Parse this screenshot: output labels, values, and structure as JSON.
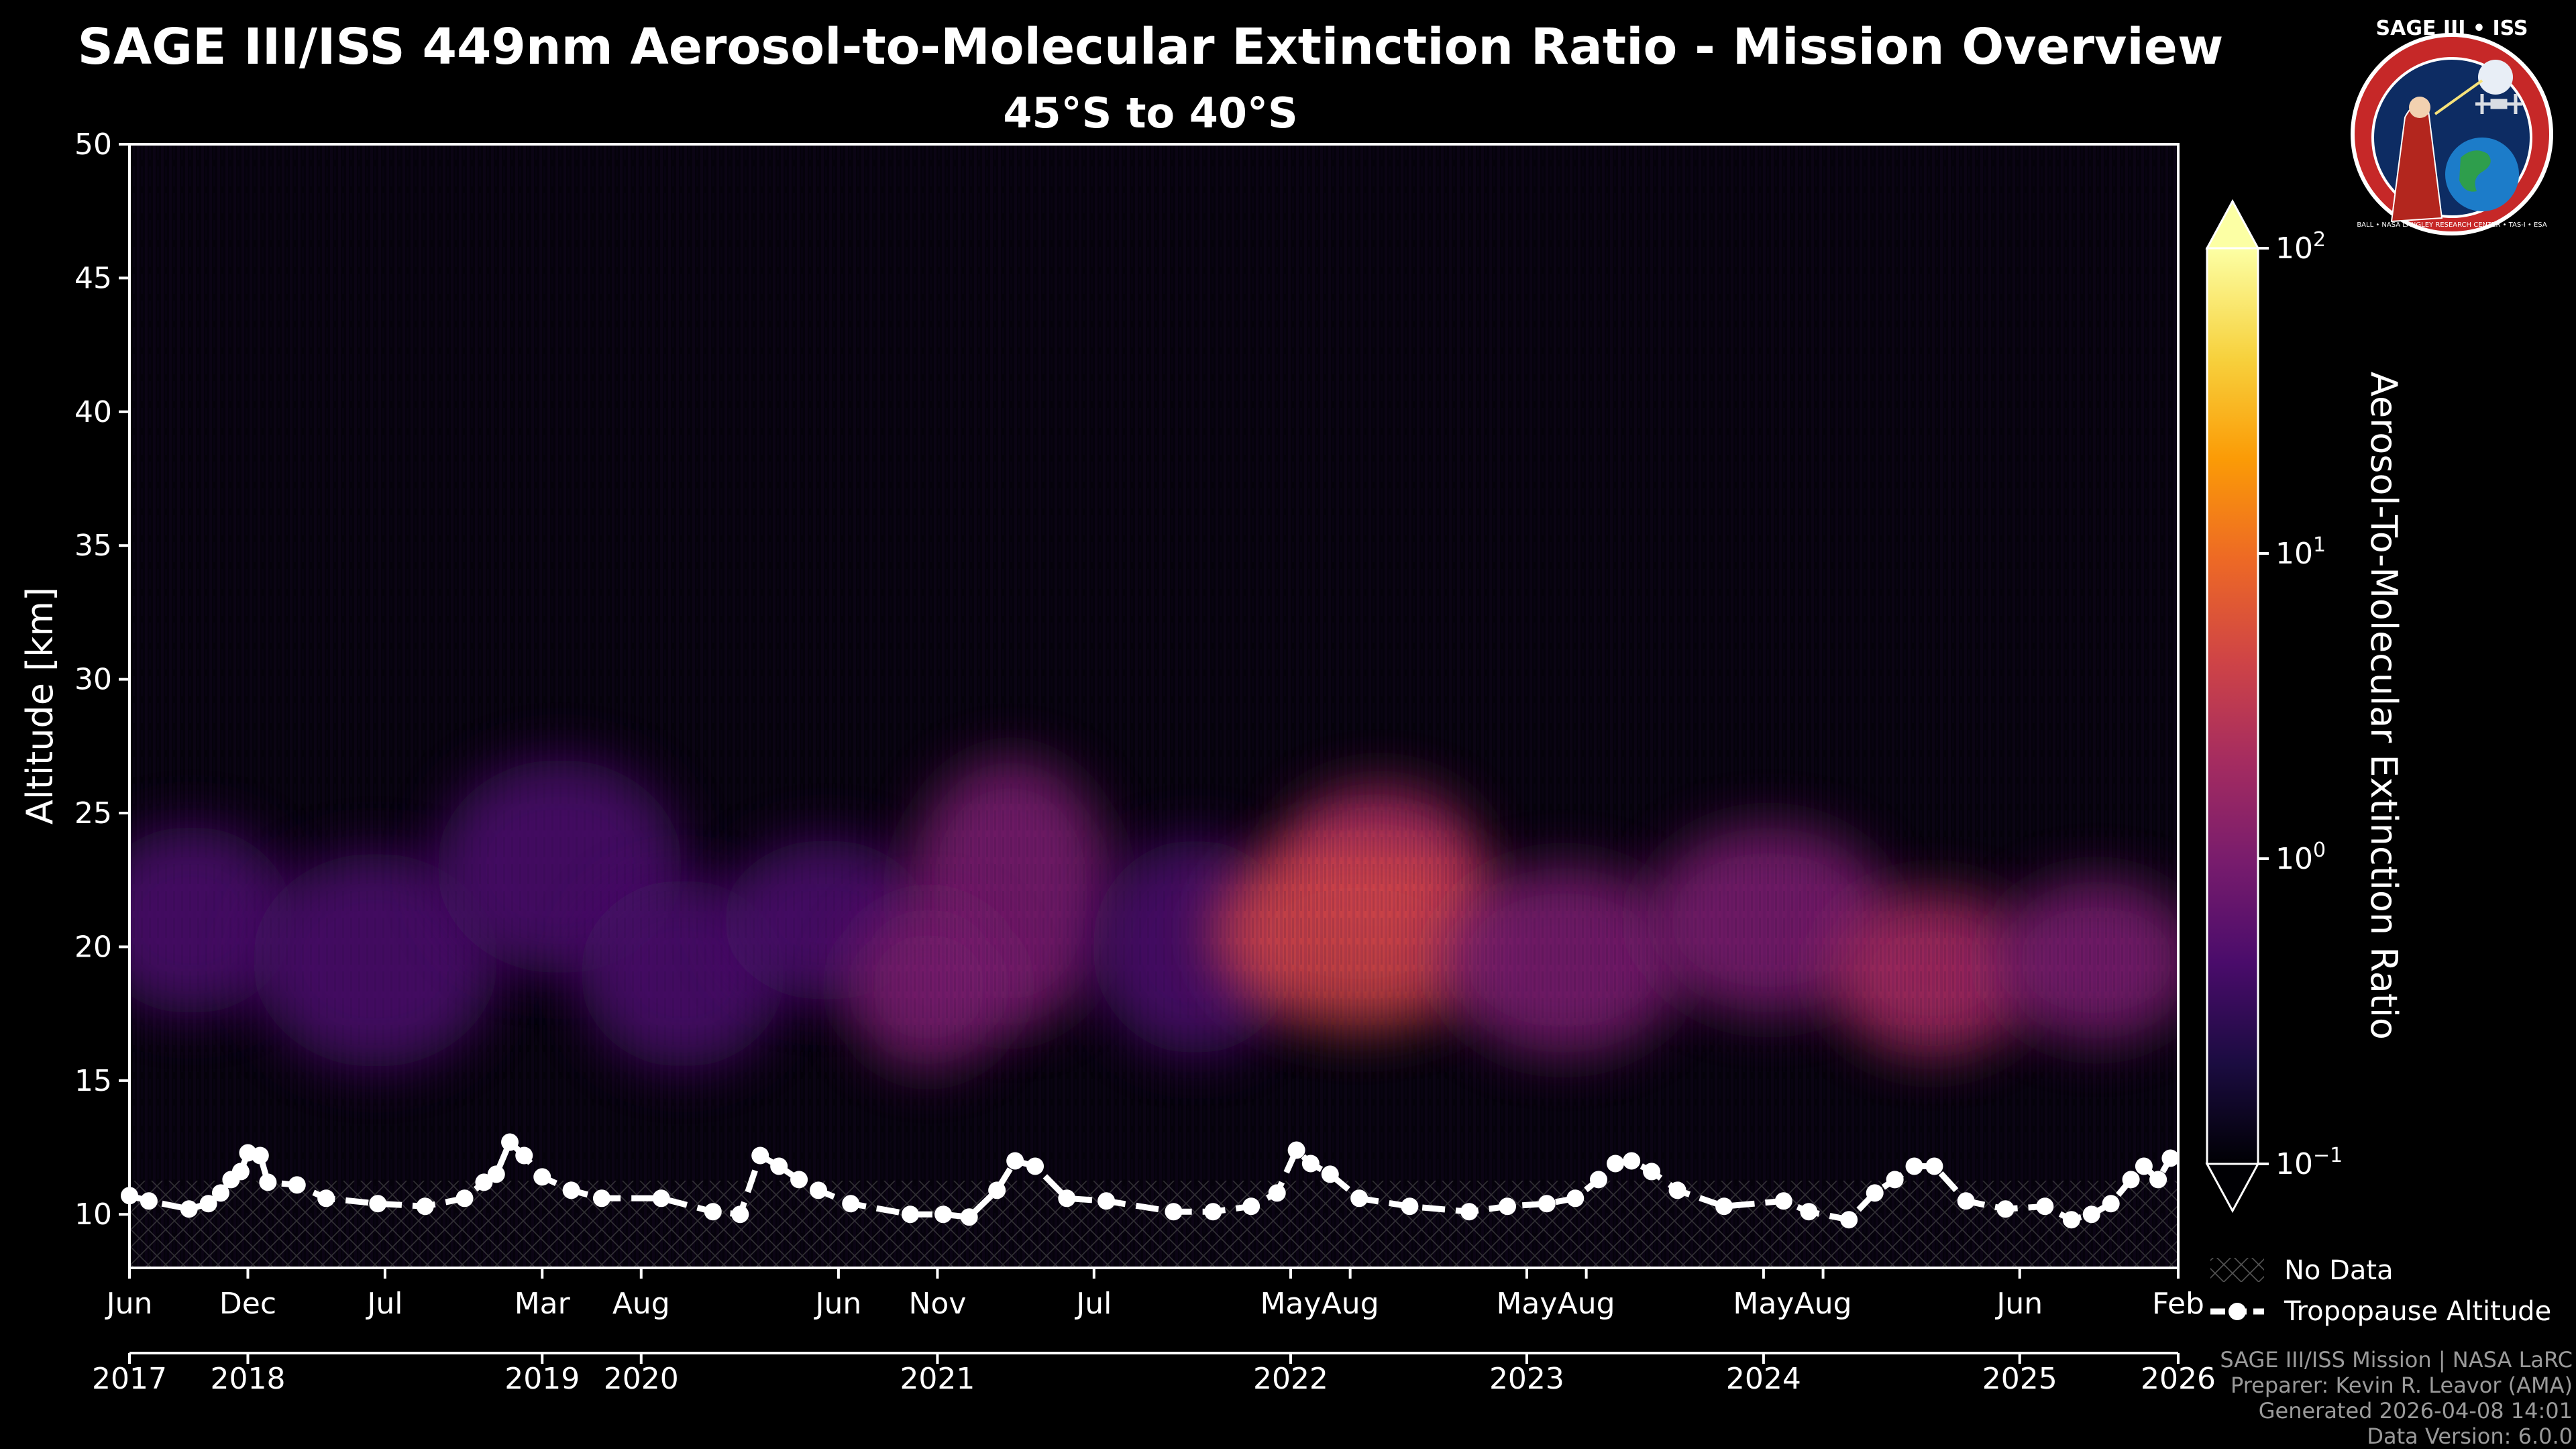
{
  "header": {
    "title": "SAGE III/ISS 449nm Aerosol-to-Molecular Extinction Ratio - Mission Overview",
    "subtitle": "45°S to 40°S"
  },
  "logo": {
    "text": "SAGE III • ISS",
    "ring_text": "BALL • NASA LANGLEY RESEARCH CENTER • TAS-I • ESA"
  },
  "legend": {
    "no_data": "No Data",
    "tropopause": "Tropopause Altitude"
  },
  "footer": {
    "mission": "SAGE III/ISS Mission | NASA LaRC",
    "preparer": "Preparer: Kevin R. Leavor (AMA)",
    "generated": "Generated 2026-04-08 14:01",
    "version": "Data Version: 6.0.0"
  },
  "colors": {
    "background": "#000000",
    "tropopause": "#ffffff",
    "colormap": [
      "#000004",
      "#1b0c41",
      "#4a0c6b",
      "#781c6d",
      "#a52c60",
      "#cf4446",
      "#ed6925",
      "#fb9b06",
      "#f7d13d",
      "#fcffa4"
    ]
  },
  "chart_data": {
    "type": "heatmap",
    "title": "SAGE III/ISS 449nm Aerosol-to-Molecular Extinction Ratio - Mission Overview",
    "subtitle": "45°S to 40°S",
    "xlabel": "",
    "ylabel": "Altitude [km]",
    "xlim": [
      "2017-06-01",
      "2026-02-01"
    ],
    "ylim": [
      8,
      50
    ],
    "yticks": [
      10,
      15,
      20,
      25,
      30,
      35,
      40,
      45,
      50
    ],
    "xticks_month": [
      {
        "date": "2017-06-01",
        "label": "Jun"
      },
      {
        "date": "2017-12-01",
        "label": "Dec"
      },
      {
        "date": "2018-07-01",
        "label": "Jul"
      },
      {
        "date": "2019-03-01",
        "label": "Mar"
      },
      {
        "date": "2019-08-01",
        "label": "Aug"
      },
      {
        "date": "2020-06-01",
        "label": "Jun"
      },
      {
        "date": "2020-11-01",
        "label": "Nov"
      },
      {
        "date": "2021-07-01",
        "label": "Jul"
      },
      {
        "date": "2022-05-01",
        "label": "May"
      },
      {
        "date": "2022-08-01",
        "label": "Aug"
      },
      {
        "date": "2023-05-01",
        "label": "May"
      },
      {
        "date": "2023-08-01",
        "label": "Aug"
      },
      {
        "date": "2024-05-01",
        "label": "May"
      },
      {
        "date": "2024-08-01",
        "label": "Aug"
      },
      {
        "date": "2025-06-01",
        "label": "Jun"
      },
      {
        "date": "2026-02-01",
        "label": "Feb"
      }
    ],
    "xticks_year": [
      {
        "date": "2017-06-01",
        "label": "2017"
      },
      {
        "date": "2017-12-01",
        "label": "2018"
      },
      {
        "date": "2019-03-01",
        "label": "2019"
      },
      {
        "date": "2019-08-01",
        "label": "2020"
      },
      {
        "date": "2020-11-01",
        "label": "2021"
      },
      {
        "date": "2022-05-01",
        "label": "2022"
      },
      {
        "date": "2023-05-01",
        "label": "2023"
      },
      {
        "date": "2024-05-01",
        "label": "2024"
      },
      {
        "date": "2025-06-01",
        "label": "2025"
      },
      {
        "date": "2026-02-01",
        "label": "2026"
      }
    ],
    "colorbar": {
      "label": "Aerosol-To-Molecular Extinction Ratio",
      "scale": "log",
      "range": [
        0.1,
        100
      ],
      "ticks": [
        {
          "value": 0.1,
          "base": "10",
          "exp": "−1"
        },
        {
          "value": 1,
          "base": "10",
          "exp": "0"
        },
        {
          "value": 10,
          "base": "10",
          "exp": "1"
        },
        {
          "value": 100,
          "base": "10",
          "exp": "2"
        }
      ],
      "extend": "both"
    },
    "aerosol_layers": [
      {
        "x_frac": 0.03,
        "alt_km": 21,
        "width": 0.05,
        "thick_km": 3.5,
        "ratio": 0.5
      },
      {
        "x_frac": 0.12,
        "alt_km": 19.5,
        "width": 0.06,
        "thick_km": 4,
        "ratio": 0.35
      },
      {
        "x_frac": 0.21,
        "alt_km": 23,
        "width": 0.06,
        "thick_km": 4,
        "ratio": 0.45
      },
      {
        "x_frac": 0.27,
        "alt_km": 19,
        "width": 0.05,
        "thick_km": 3.5,
        "ratio": 0.6
      },
      {
        "x_frac": 0.34,
        "alt_km": 21,
        "width": 0.05,
        "thick_km": 3,
        "ratio": 0.5
      },
      {
        "x_frac": 0.43,
        "alt_km": 22,
        "width": 0.05,
        "thick_km": 5,
        "ratio": 0.7
      },
      {
        "x_frac": 0.39,
        "alt_km": 18.5,
        "width": 0.04,
        "thick_km": 3,
        "ratio": 0.8
      },
      {
        "x_frac": 0.52,
        "alt_km": 20,
        "width": 0.05,
        "thick_km": 4,
        "ratio": 0.55
      },
      {
        "x_frac": 0.61,
        "alt_km": 23,
        "width": 0.05,
        "thick_km": 3,
        "ratio": 1.8
      },
      {
        "x_frac": 0.6,
        "alt_km": 20.5,
        "width": 0.07,
        "thick_km": 3.5,
        "ratio": 3.2
      },
      {
        "x_frac": 0.7,
        "alt_km": 19.5,
        "width": 0.06,
        "thick_km": 3.5,
        "ratio": 1.4
      },
      {
        "x_frac": 0.8,
        "alt_km": 21,
        "width": 0.06,
        "thick_km": 3.5,
        "ratio": 0.7
      },
      {
        "x_frac": 0.88,
        "alt_km": 19,
        "width": 0.05,
        "thick_km": 3,
        "ratio": 1.5
      },
      {
        "x_frac": 0.96,
        "alt_km": 19.5,
        "width": 0.05,
        "thick_km": 3,
        "ratio": 0.9
      }
    ],
    "tropopause": [
      {
        "x": "2017-06-01",
        "alt_km": 10.7
      },
      {
        "x": "2017-07-01",
        "alt_km": 10.5
      },
      {
        "x": "2017-09-01",
        "alt_km": 10.2
      },
      {
        "x": "2017-10-01",
        "alt_km": 10.4
      },
      {
        "x": "2017-10-20",
        "alt_km": 10.8
      },
      {
        "x": "2017-11-05",
        "alt_km": 11.3
      },
      {
        "x": "2017-11-20",
        "alt_km": 11.6
      },
      {
        "x": "2017-12-01",
        "alt_km": 12.3
      },
      {
        "x": "2017-12-20",
        "alt_km": 12.2
      },
      {
        "x": "2018-01-01",
        "alt_km": 11.2
      },
      {
        "x": "2018-02-15",
        "alt_km": 11.1
      },
      {
        "x": "2018-04-01",
        "alt_km": 10.6
      },
      {
        "x": "2018-06-20",
        "alt_km": 10.4
      },
      {
        "x": "2018-09-01",
        "alt_km": 10.3
      },
      {
        "x": "2018-11-01",
        "alt_km": 10.6
      },
      {
        "x": "2018-12-01",
        "alt_km": 11.2
      },
      {
        "x": "2018-12-20",
        "alt_km": 11.5
      },
      {
        "x": "2019-01-10",
        "alt_km": 12.7
      },
      {
        "x": "2019-02-01",
        "alt_km": 12.2
      },
      {
        "x": "2019-03-01",
        "alt_km": 11.4
      },
      {
        "x": "2019-04-15",
        "alt_km": 10.9
      },
      {
        "x": "2019-06-01",
        "alt_km": 10.6
      },
      {
        "x": "2019-09-01",
        "alt_km": 10.6
      },
      {
        "x": "2019-11-20",
        "alt_km": 10.1
      },
      {
        "x": "2020-01-01",
        "alt_km": 10.0
      },
      {
        "x": "2020-02-01",
        "alt_km": 12.2
      },
      {
        "x": "2020-03-01",
        "alt_km": 11.8
      },
      {
        "x": "2020-04-01",
        "alt_km": 11.3
      },
      {
        "x": "2020-05-01",
        "alt_km": 10.9
      },
      {
        "x": "2020-06-20",
        "alt_km": 10.4
      },
      {
        "x": "2020-09-20",
        "alt_km": 10.0
      },
      {
        "x": "2020-11-10",
        "alt_km": 10.0
      },
      {
        "x": "2020-12-20",
        "alt_km": 9.9
      },
      {
        "x": "2021-02-01",
        "alt_km": 10.9
      },
      {
        "x": "2021-03-01",
        "alt_km": 12.0
      },
      {
        "x": "2021-04-01",
        "alt_km": 11.8
      },
      {
        "x": "2021-05-20",
        "alt_km": 10.6
      },
      {
        "x": "2021-07-20",
        "alt_km": 10.5
      },
      {
        "x": "2021-11-01",
        "alt_km": 10.1
      },
      {
        "x": "2022-01-01",
        "alt_km": 10.1
      },
      {
        "x": "2022-03-01",
        "alt_km": 10.3
      },
      {
        "x": "2022-04-10",
        "alt_km": 10.8
      },
      {
        "x": "2022-05-10",
        "alt_km": 12.4
      },
      {
        "x": "2022-06-01",
        "alt_km": 11.9
      },
      {
        "x": "2022-07-01",
        "alt_km": 11.5
      },
      {
        "x": "2022-08-15",
        "alt_km": 10.6
      },
      {
        "x": "2022-11-01",
        "alt_km": 10.3
      },
      {
        "x": "2023-02-01",
        "alt_km": 10.1
      },
      {
        "x": "2023-04-01",
        "alt_km": 10.3
      },
      {
        "x": "2023-06-01",
        "alt_km": 10.4
      },
      {
        "x": "2023-07-15",
        "alt_km": 10.6
      },
      {
        "x": "2023-08-20",
        "alt_km": 11.3
      },
      {
        "x": "2023-09-15",
        "alt_km": 11.9
      },
      {
        "x": "2023-10-10",
        "alt_km": 12.0
      },
      {
        "x": "2023-11-10",
        "alt_km": 11.6
      },
      {
        "x": "2023-12-20",
        "alt_km": 10.9
      },
      {
        "x": "2024-03-01",
        "alt_km": 10.3
      },
      {
        "x": "2024-06-01",
        "alt_km": 10.5
      },
      {
        "x": "2024-07-10",
        "alt_km": 10.1
      },
      {
        "x": "2024-09-10",
        "alt_km": 9.8
      },
      {
        "x": "2024-10-20",
        "alt_km": 10.8
      },
      {
        "x": "2024-11-20",
        "alt_km": 11.3
      },
      {
        "x": "2024-12-20",
        "alt_km": 11.8
      },
      {
        "x": "2025-01-20",
        "alt_km": 11.8
      },
      {
        "x": "2025-03-10",
        "alt_km": 10.5
      },
      {
        "x": "2025-05-10",
        "alt_km": 10.2
      },
      {
        "x": "2025-07-10",
        "alt_km": 10.3
      },
      {
        "x": "2025-08-20",
        "alt_km": 9.8
      },
      {
        "x": "2025-09-20",
        "alt_km": 10.0
      },
      {
        "x": "2025-10-20",
        "alt_km": 10.4
      },
      {
        "x": "2025-11-20",
        "alt_km": 11.3
      },
      {
        "x": "2025-12-10",
        "alt_km": 11.8
      },
      {
        "x": "2026-01-01",
        "alt_km": 11.3
      },
      {
        "x": "2026-01-20",
        "alt_km": 12.1
      }
    ]
  }
}
